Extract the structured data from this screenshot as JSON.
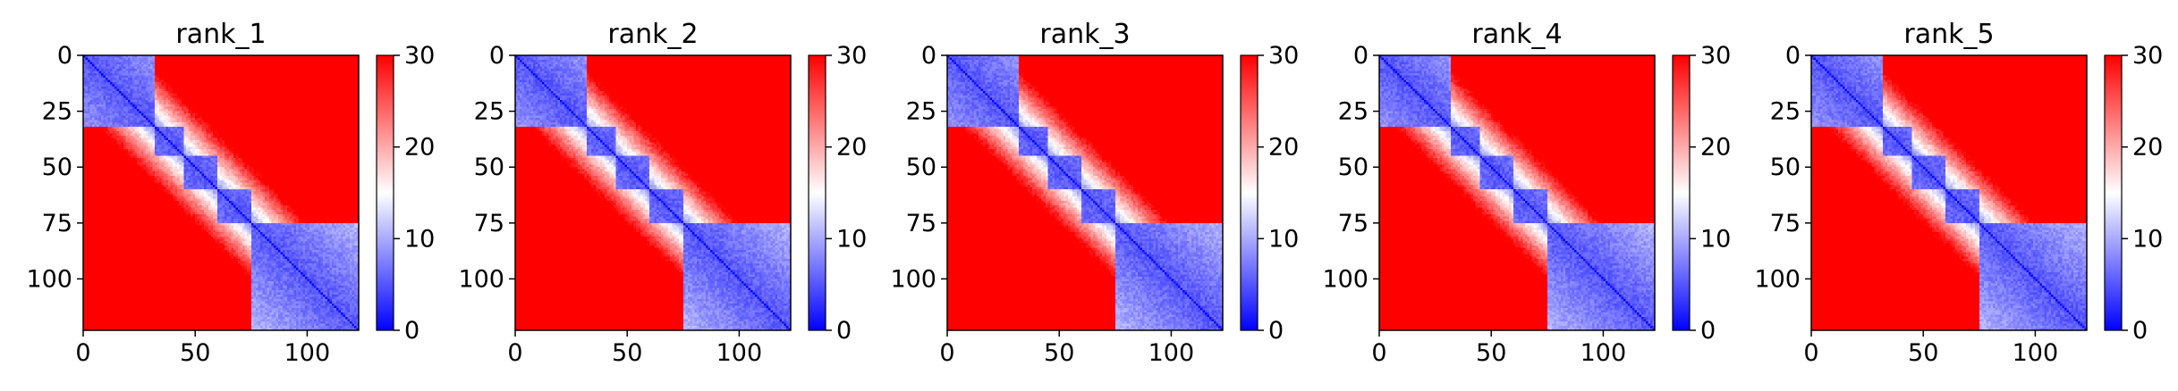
{
  "figure": {
    "background": "#ffffff"
  },
  "colormap": {
    "name": "bwr",
    "low_color": "#0000ff",
    "mid_color": "#ffffff",
    "high_color": "#ff0000",
    "vmin": 0,
    "vmax": 30,
    "ticks": [
      "0",
      "10",
      "20",
      "30"
    ]
  },
  "chart_data": [
    {
      "type": "heatmap",
      "title": "rank_1",
      "matrix_size": 123,
      "xlim": [
        0,
        123
      ],
      "ylim": [
        123,
        0
      ],
      "x_ticks": [
        "0",
        "50",
        "100"
      ],
      "y_ticks": [
        "0",
        "25",
        "50",
        "75",
        "100"
      ],
      "domain_blocks": [
        [
          0,
          32
        ],
        [
          32,
          45
        ],
        [
          45,
          60
        ],
        [
          60,
          75
        ],
        [
          75,
          123
        ]
      ],
      "within_block_distance": 5,
      "between_block_distance": 32,
      "diagonal_value": 0,
      "grid": false,
      "colorbar": {
        "range": [
          0,
          30
        ],
        "ticks": [
          "0",
          "10",
          "20",
          "30"
        ]
      }
    },
    {
      "type": "heatmap",
      "title": "rank_2",
      "matrix_size": 123,
      "xlim": [
        0,
        123
      ],
      "ylim": [
        123,
        0
      ],
      "x_ticks": [
        "0",
        "50",
        "100"
      ],
      "y_ticks": [
        "0",
        "25",
        "50",
        "75",
        "100"
      ],
      "domain_blocks": [
        [
          0,
          32
        ],
        [
          32,
          45
        ],
        [
          45,
          60
        ],
        [
          60,
          75
        ],
        [
          75,
          123
        ]
      ],
      "within_block_distance": 5,
      "between_block_distance": 32,
      "diagonal_value": 0,
      "grid": false,
      "colorbar": {
        "range": [
          0,
          30
        ],
        "ticks": [
          "0",
          "10",
          "20",
          "30"
        ]
      }
    },
    {
      "type": "heatmap",
      "title": "rank_3",
      "matrix_size": 123,
      "xlim": [
        0,
        123
      ],
      "ylim": [
        123,
        0
      ],
      "x_ticks": [
        "0",
        "50",
        "100"
      ],
      "y_ticks": [
        "0",
        "25",
        "50",
        "75",
        "100"
      ],
      "domain_blocks": [
        [
          0,
          32
        ],
        [
          32,
          45
        ],
        [
          45,
          60
        ],
        [
          60,
          75
        ],
        [
          75,
          123
        ]
      ],
      "within_block_distance": 5,
      "between_block_distance": 32,
      "diagonal_value": 0,
      "grid": false,
      "colorbar": {
        "range": [
          0,
          30
        ],
        "ticks": [
          "0",
          "10",
          "20",
          "30"
        ]
      }
    },
    {
      "type": "heatmap",
      "title": "rank_4",
      "matrix_size": 123,
      "xlim": [
        0,
        123
      ],
      "ylim": [
        123,
        0
      ],
      "x_ticks": [
        "0",
        "50",
        "100"
      ],
      "y_ticks": [
        "0",
        "25",
        "50",
        "75",
        "100"
      ],
      "domain_blocks": [
        [
          0,
          32
        ],
        [
          32,
          45
        ],
        [
          45,
          60
        ],
        [
          60,
          75
        ],
        [
          75,
          123
        ]
      ],
      "within_block_distance": 5,
      "between_block_distance": 32,
      "diagonal_value": 0,
      "grid": false,
      "colorbar": {
        "range": [
          0,
          30
        ],
        "ticks": [
          "0",
          "10",
          "20",
          "30"
        ]
      }
    },
    {
      "type": "heatmap",
      "title": "rank_5",
      "matrix_size": 123,
      "xlim": [
        0,
        123
      ],
      "ylim": [
        123,
        0
      ],
      "x_ticks": [
        "0",
        "50",
        "100"
      ],
      "y_ticks": [
        "0",
        "25",
        "50",
        "75",
        "100"
      ],
      "domain_blocks": [
        [
          0,
          32
        ],
        [
          32,
          45
        ],
        [
          45,
          60
        ],
        [
          60,
          75
        ],
        [
          75,
          123
        ]
      ],
      "within_block_distance": 5,
      "between_block_distance": 32,
      "diagonal_value": 0,
      "grid": false,
      "colorbar": {
        "range": [
          0,
          30
        ],
        "ticks": [
          "0",
          "10",
          "20",
          "30"
        ]
      }
    }
  ]
}
